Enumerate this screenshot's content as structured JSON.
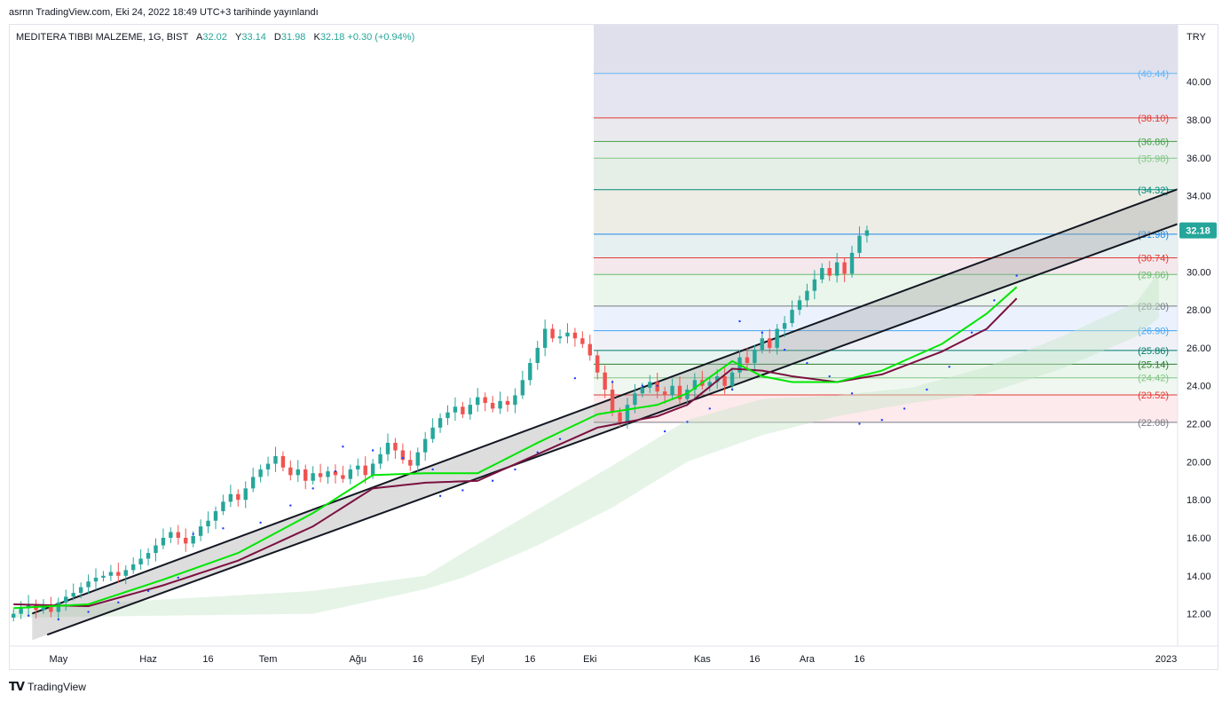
{
  "header": {
    "published": "asrnn TradingView.com, Eki 24, 2022 18:49 UTC+3 tarihinde yayınlandı"
  },
  "legend": {
    "symbol": "MEDITERA TIBBI MALZEME, 1G, BIST",
    "open_label": "A",
    "open": "32.02",
    "high_label": "Y",
    "high": "33.14",
    "low_label": "D",
    "low": "31.98",
    "close_label": "K",
    "close": "32.18",
    "change": "+0.30 (+0.94%)"
  },
  "footer": {
    "brand": "TradingView",
    "logo_icon": "tradingview-logo-icon"
  },
  "colors": {
    "up": "#26a69a",
    "down": "#ef5350",
    "ema_fast": "#00e600",
    "ema_slow": "#7b1140",
    "psar": "#1e40ff",
    "channel": "#131722",
    "cloud": "#c8e6c9",
    "price_tag": "#26a69a"
  },
  "chart_data": {
    "type": "candlestick",
    "currency": "TRY",
    "ylim": [
      10.3,
      43
    ],
    "y_ticks": [
      "12.00",
      "14.00",
      "16.00",
      "18.00",
      "20.00",
      "22.00",
      "24.00",
      "26.00",
      "28.00",
      "30.00",
      "32.00",
      "34.00",
      "36.00",
      "38.00",
      "40.00"
    ],
    "x_ticks": [
      "May",
      "Haz",
      "16",
      "Tem",
      "Ağu",
      "16",
      "Eyl",
      "16",
      "Eki",
      "Kas",
      "16",
      "Ara",
      "16",
      "2023"
    ],
    "last_price": "32.18",
    "fib_levels": [
      {
        "value": 40.44,
        "label": "(40.44)",
        "color": "#64b5f6"
      },
      {
        "value": 38.1,
        "label": "(38.10)",
        "color": "#e53935"
      },
      {
        "value": 36.86,
        "label": "(36.86)",
        "color": "#43a047"
      },
      {
        "value": 35.98,
        "label": "(35.98)",
        "color": "#81c784"
      },
      {
        "value": 34.32,
        "label": "(34.32)",
        "color": "#00897b"
      },
      {
        "value": 31.98,
        "label": "(31.98)",
        "color": "#1e88e5"
      },
      {
        "value": 30.74,
        "label": "(30.74)",
        "color": "#e53935"
      },
      {
        "value": 29.86,
        "label": "(29.86)",
        "color": "#66bb6a"
      },
      {
        "value": 28.2,
        "label": "(28.20)",
        "color": "#787b86"
      },
      {
        "value": 26.9,
        "label": "(26.90)",
        "color": "#42a5f5"
      },
      {
        "value": 25.86,
        "label": "(25.86)",
        "color": "#00796b"
      },
      {
        "value": 25.14,
        "label": "(25.14)",
        "color": "#2e7d32"
      },
      {
        "value": 24.42,
        "label": "(24.42)",
        "color": "#81c784"
      },
      {
        "value": 23.52,
        "label": "(23.52)",
        "color": "#e53935"
      },
      {
        "value": 22.08,
        "label": "(22.08)",
        "color": "#787b86"
      }
    ],
    "channel": {
      "upper": [
        [
          -1,
          11.5
        ],
        [
          156,
          34.42
        ]
      ],
      "lower": [
        [
          1,
          10.4
        ],
        [
          156,
          32.59
        ]
      ]
    },
    "ema_fast_anchors": [
      [
        0,
        12.3
      ],
      [
        10,
        12.5
      ],
      [
        20,
        13.8
      ],
      [
        30,
        15.2
      ],
      [
        40,
        17.3
      ],
      [
        48,
        19.3
      ],
      [
        55,
        19.4
      ],
      [
        62,
        19.4
      ],
      [
        70,
        21.0
      ],
      [
        78,
        22.5
      ],
      [
        86,
        23.0
      ],
      [
        90,
        23.6
      ],
      [
        96,
        25.3
      ],
      [
        100,
        24.5
      ],
      [
        104,
        24.2
      ],
      [
        110,
        24.2
      ],
      [
        116,
        24.8
      ],
      [
        124,
        26.2
      ],
      [
        130,
        27.8
      ],
      [
        134,
        29.2
      ]
    ],
    "ema_slow_anchors": [
      [
        0,
        12.5
      ],
      [
        10,
        12.4
      ],
      [
        20,
        13.5
      ],
      [
        30,
        14.8
      ],
      [
        40,
        16.6
      ],
      [
        48,
        18.6
      ],
      [
        55,
        18.9
      ],
      [
        62,
        19.0
      ],
      [
        70,
        20.4
      ],
      [
        78,
        21.8
      ],
      [
        86,
        22.4
      ],
      [
        90,
        23.0
      ],
      [
        96,
        24.9
      ],
      [
        100,
        24.8
      ],
      [
        104,
        24.5
      ],
      [
        110,
        24.2
      ],
      [
        116,
        24.6
      ],
      [
        124,
        25.8
      ],
      [
        130,
        27.0
      ],
      [
        134,
        28.6
      ]
    ],
    "candle_closes": [
      12.0,
      12.3,
      12.5,
      12.2,
      12.4,
      12.1,
      12.6,
      12.9,
      13.1,
      13.4,
      13.7,
      13.9,
      14.0,
      14.2,
      14.0,
      14.3,
      14.6,
      14.9,
      15.2,
      15.6,
      16.0,
      16.3,
      16.0,
      15.7,
      16.1,
      16.6,
      16.9,
      17.4,
      17.9,
      18.3,
      18.0,
      18.6,
      19.2,
      19.6,
      19.9,
      20.3,
      19.7,
      19.3,
      19.6,
      19.0,
      19.4,
      19.2,
      19.5,
      19.3,
      19.1,
      19.6,
      19.8,
      19.3,
      19.9,
      20.4,
      21.0,
      20.6,
      20.1,
      19.8,
      20.5,
      21.2,
      21.8,
      22.3,
      22.6,
      22.9,
      22.5,
      23.0,
      23.4,
      23.1,
      22.8,
      23.2,
      23.0,
      23.5,
      24.3,
      25.2,
      26.0,
      27.0,
      26.5,
      26.6,
      26.8,
      26.5,
      26.2,
      25.6,
      24.7,
      23.8,
      22.6,
      22.1,
      23.0,
      23.6,
      23.9,
      24.2,
      23.7,
      23.5,
      24.0,
      23.3,
      23.8,
      24.3,
      24.0,
      24.2,
      24.5,
      24.0,
      24.7,
      25.5,
      25.2,
      25.9,
      26.5,
      26.0,
      27.0,
      27.3,
      28.0,
      28.5,
      29.0,
      29.6,
      30.2,
      29.8,
      30.5,
      29.9,
      31.0,
      31.9,
      32.18
    ],
    "candle_start_index": 0,
    "psar_points": [
      [
        2,
        11.9
      ],
      [
        6,
        11.7
      ],
      [
        10,
        12.1
      ],
      [
        14,
        12.6
      ],
      [
        18,
        13.2
      ],
      [
        22,
        13.9
      ],
      [
        24,
        16.2
      ],
      [
        28,
        16.5
      ],
      [
        33,
        16.8
      ],
      [
        37,
        17.7
      ],
      [
        40,
        18.6
      ],
      [
        43,
        19.5
      ],
      [
        44,
        20.8
      ],
      [
        48,
        20.6
      ],
      [
        52,
        20.2
      ],
      [
        56,
        19.6
      ],
      [
        57,
        18.2
      ],
      [
        60,
        18.5
      ],
      [
        64,
        19.0
      ],
      [
        67,
        19.6
      ],
      [
        70,
        20.5
      ],
      [
        73,
        21.2
      ],
      [
        75,
        24.4
      ],
      [
        80,
        24.2
      ],
      [
        84,
        24.0
      ],
      [
        86,
        24.0
      ],
      [
        87,
        21.6
      ],
      [
        90,
        22.1
      ],
      [
        93,
        22.8
      ],
      [
        96,
        23.8
      ],
      [
        97,
        27.4
      ],
      [
        100,
        26.8
      ],
      [
        103,
        25.9
      ],
      [
        106,
        25.2
      ],
      [
        109,
        24.5
      ],
      [
        112,
        23.6
      ],
      [
        113,
        22.0
      ],
      [
        116,
        22.2
      ],
      [
        119,
        22.8
      ],
      [
        122,
        23.8
      ],
      [
        125,
        25.0
      ],
      [
        128,
        26.8
      ],
      [
        131,
        28.5
      ],
      [
        134,
        29.8
      ]
    ],
    "cloud_upper": [
      [
        0,
        12.3
      ],
      [
        40,
        13.2
      ],
      [
        55,
        14.0
      ],
      [
        60,
        15.2
      ],
      [
        70,
        17.5
      ],
      [
        80,
        19.8
      ],
      [
        90,
        22.2
      ],
      [
        100,
        23.3
      ],
      [
        110,
        23.5
      ],
      [
        120,
        23.9
      ],
      [
        130,
        25.0
      ],
      [
        140,
        26.6
      ],
      [
        150,
        28.4
      ],
      [
        153,
        30.0
      ]
    ],
    "cloud_lower": [
      [
        0,
        11.8
      ],
      [
        40,
        12.0
      ],
      [
        55,
        13.3
      ],
      [
        60,
        13.9
      ],
      [
        70,
        15.6
      ],
      [
        80,
        17.6
      ],
      [
        90,
        20.0
      ],
      [
        100,
        21.4
      ],
      [
        110,
        22.4
      ],
      [
        120,
        23.1
      ],
      [
        130,
        23.6
      ],
      [
        140,
        24.9
      ],
      [
        150,
        26.6
      ],
      [
        153,
        27.6
      ]
    ],
    "n_slots": 156
  }
}
